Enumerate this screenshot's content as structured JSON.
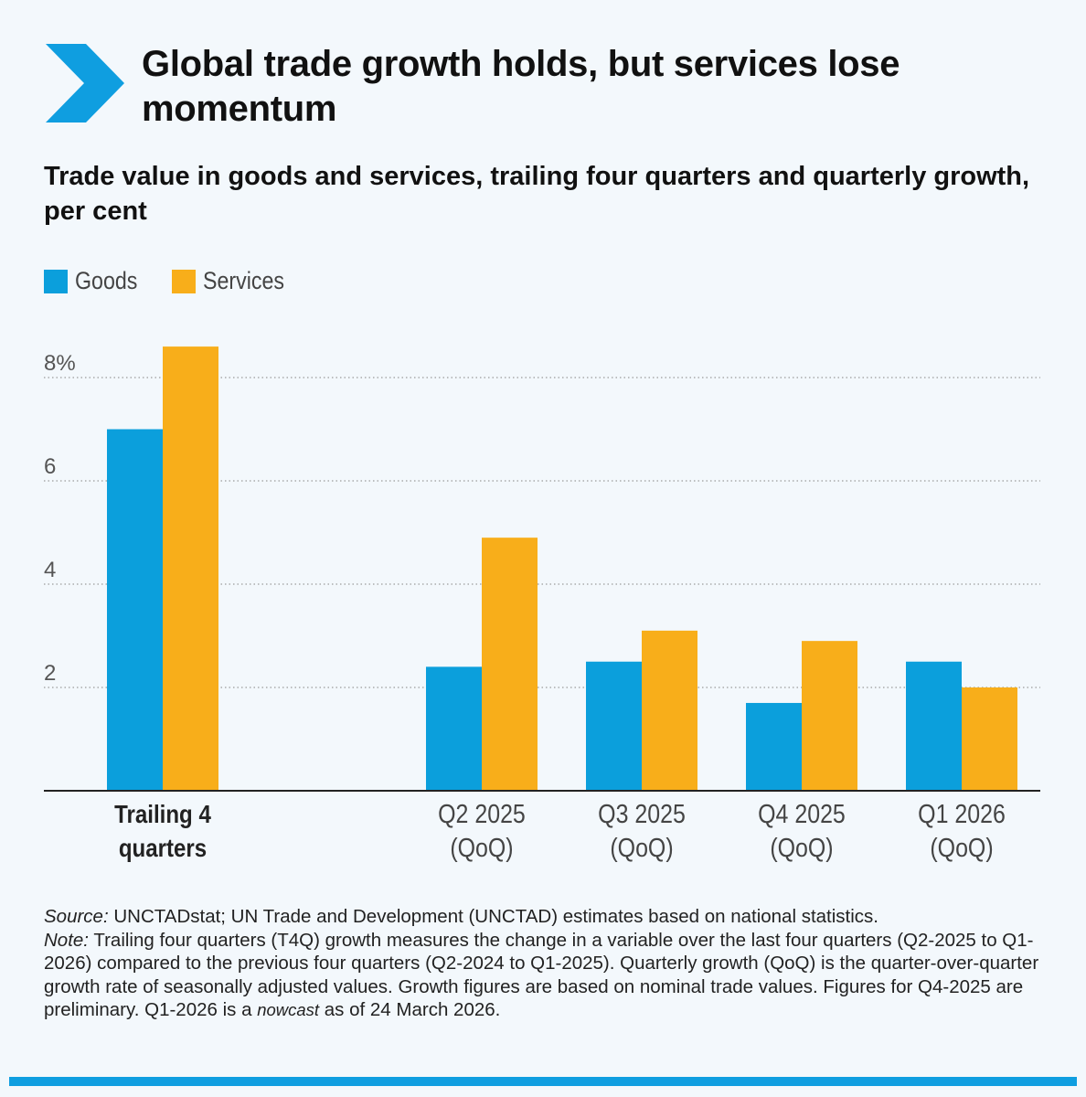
{
  "title": "Global trade growth holds, but services lose momentum",
  "subtitle": "Trade value in goods and services, trailing four quarters and quarterly growth, per cent",
  "colors": {
    "goods": "#0b9fdc",
    "services": "#f8ae1a",
    "accent": "#0f9ee0"
  },
  "legend": [
    {
      "label": "Goods",
      "color": "#0b9fdc"
    },
    {
      "label": "Services",
      "color": "#f8ae1a"
    }
  ],
  "chart_data": {
    "type": "bar",
    "categories": [
      {
        "line1": "Trailing 4",
        "line2": "quarters",
        "bold": true
      },
      {
        "line1": "Q2 2025",
        "line2": "(QoQ)",
        "bold": false
      },
      {
        "line1": "Q3 2025",
        "line2": "(QoQ)",
        "bold": false
      },
      {
        "line1": "Q4 2025",
        "line2": "(QoQ)",
        "bold": false
      },
      {
        "line1": "Q1 2026",
        "line2": "(QoQ)",
        "bold": false
      }
    ],
    "series": [
      {
        "name": "Goods",
        "values": [
          7.0,
          2.4,
          2.5,
          1.7,
          2.5
        ]
      },
      {
        "name": "Services",
        "values": [
          8.6,
          4.9,
          3.1,
          2.9,
          2.0
        ]
      }
    ],
    "yticks": [
      {
        "value": 2,
        "label": "2"
      },
      {
        "value": 4,
        "label": "4"
      },
      {
        "value": 6,
        "label": "6"
      },
      {
        "value": 8,
        "label": "8%"
      }
    ],
    "ylim": [
      0,
      9
    ],
    "grid": true,
    "legend_position": "top-left"
  },
  "footer": {
    "source_label": "Source:",
    "source_text": " UNCTADstat; UN Trade and Development (UNCTAD) estimates based on national statistics.",
    "note_label": "Note:",
    "note_text": " Trailing four quarters (T4Q) growth measures the change in a variable over the last four quarters (Q2-2025 to Q1-2026) compared to the previous four quarters (Q2-2024 to Q1-2025). Quarterly growth (QoQ) is the quarter-over-quarter growth rate of seasonally adjusted values. Growth figures are based on nominal trade values. Figures for Q4-2025 are preliminary. Q1-2026 is a ",
    "nowcast": "nowcast",
    "note_end": " as of 24 March 2026."
  }
}
